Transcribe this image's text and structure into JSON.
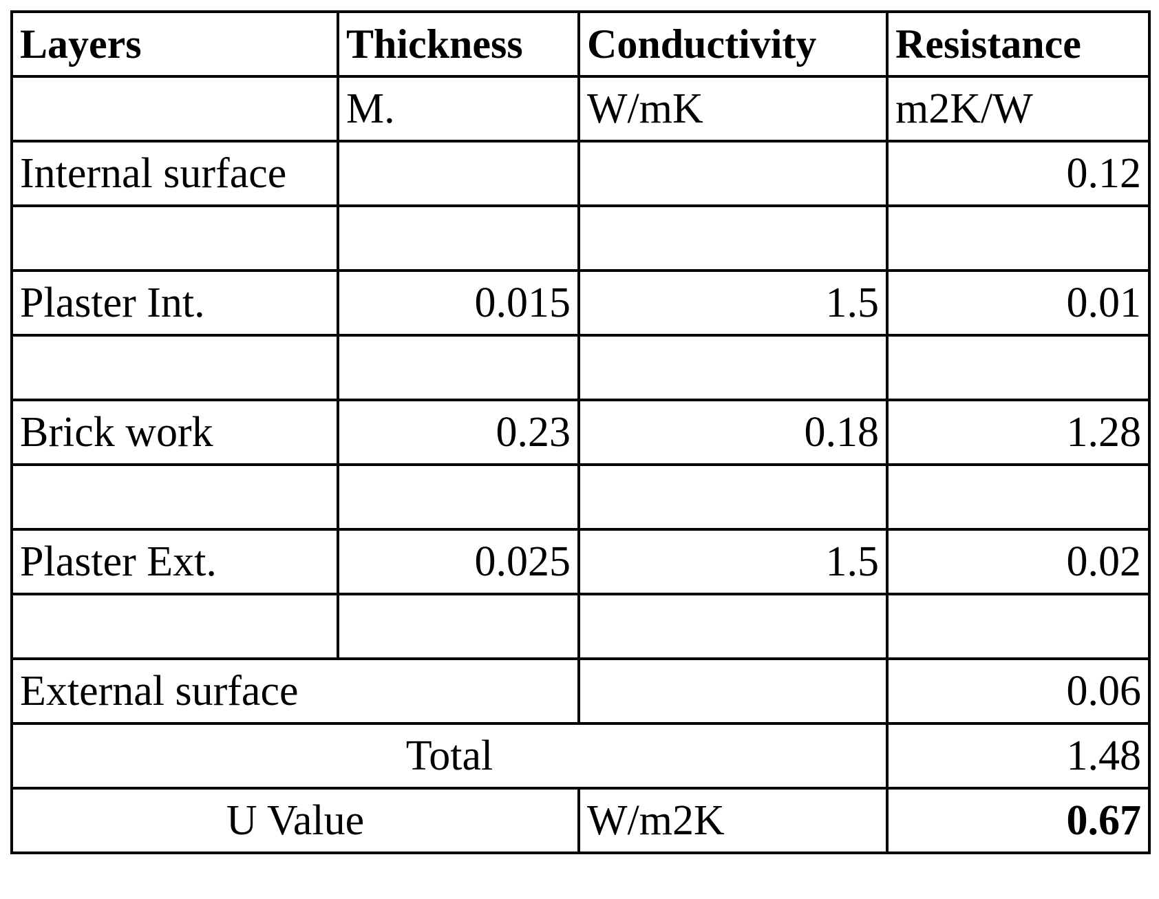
{
  "table": {
    "header": [
      "Layers",
      "Thickness",
      "Conductivity",
      "Resistance"
    ],
    "units": [
      "M.",
      "W/mK",
      "m2K/W"
    ],
    "rows": [
      {
        "layer": "Internal surface",
        "resistance": 0.12
      },
      {
        "layer": "Plaster Int.",
        "thickness": 0.015,
        "conductivity": 1.5,
        "resistance": 0.01
      },
      {
        "layer": "Brick work",
        "thickness": 0.23,
        "conductivity": 0.18,
        "resistance": 1.28
      },
      {
        "layer": "Plaster Ext.",
        "thickness": 0.025,
        "conductivity": 1.5,
        "resistance": 0.02
      }
    ],
    "external": {
      "layer": "External surface",
      "resistance": 0.06
    },
    "total": {
      "label": "Total",
      "resistance": 1.48
    },
    "u_value": {
      "label": "U Value",
      "unit": "W/m2K",
      "value": 0.67
    }
  }
}
